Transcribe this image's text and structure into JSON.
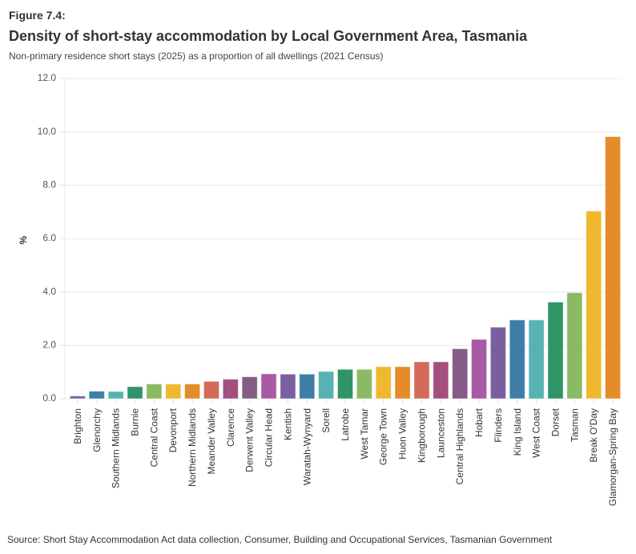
{
  "figure_label": "Figure 7.4:",
  "title": "Density of short-stay accommodation by Local Government Area, Tasmania",
  "subtitle": "Non-primary residence short stays (2025) as a proportion of all dwellings (2021 Census)",
  "source": "Source: Short Stay Accommodation Act data collection, Consumer, Building and Occupational Services, Tasmanian Government",
  "chart_data": {
    "type": "bar",
    "title": "Density of short-stay accommodation by Local Government Area, Tasmania",
    "subtitle": "Non-primary residence short stays (2025) as a proportion of all dwellings (2021 Census)",
    "xlabel": "",
    "ylabel": "%",
    "ylim": [
      0,
      12
    ],
    "yticks": [
      0,
      2,
      4,
      6,
      8,
      10,
      12
    ],
    "ytick_labels": [
      "0.0",
      "2.0",
      "4.0",
      "6.0",
      "8.0",
      "10.0",
      "12.0"
    ],
    "grid": true,
    "legend": "none",
    "categories": [
      "Brighton",
      "Glenorchy",
      "Southern Midlands",
      "Burnie",
      "Central Coast",
      "Devonport",
      "Northern Midlands",
      "Meander Valley",
      "Clarence",
      "Derwent Valley",
      "Circular Head",
      "Kentish",
      "Waratah-Wynyard",
      "Sorell",
      "Latrobe",
      "West Tamar",
      "George Town",
      "Huon Valley",
      "Kingborough",
      "Launceston",
      "Central Highlands",
      "Hobart",
      "Flinders",
      "King Island",
      "West Coast",
      "Dorset",
      "Tasman",
      "Break O'Day",
      "Glamorgan-Spring Bay"
    ],
    "values": [
      0.1,
      0.28,
      0.27,
      0.45,
      0.55,
      0.55,
      0.55,
      0.65,
      0.73,
      0.82,
      0.93,
      0.92,
      0.92,
      1.02,
      1.1,
      1.1,
      1.2,
      1.2,
      1.38,
      1.38,
      1.87,
      2.22,
      2.68,
      2.95,
      2.95,
      3.62,
      3.97,
      7.03,
      9.82
    ],
    "colors": [
      "#7a5fa0",
      "#3d7ea6",
      "#56b3b3",
      "#2f9468",
      "#8aba63",
      "#efb82e",
      "#e48b2a",
      "#d46a5a",
      "#a34f80",
      "#845c85",
      "#a85aa3",
      "#7a5fa0",
      "#3d7ea6",
      "#56b3b3",
      "#2f9468",
      "#8aba63",
      "#efb82e",
      "#e48b2a",
      "#d46a5a",
      "#a34f80",
      "#845c85",
      "#a85aa3",
      "#7a5fa0",
      "#3d7ea6",
      "#56b3b3",
      "#2f9468",
      "#8aba63",
      "#efb82e",
      "#e48b2a"
    ]
  }
}
